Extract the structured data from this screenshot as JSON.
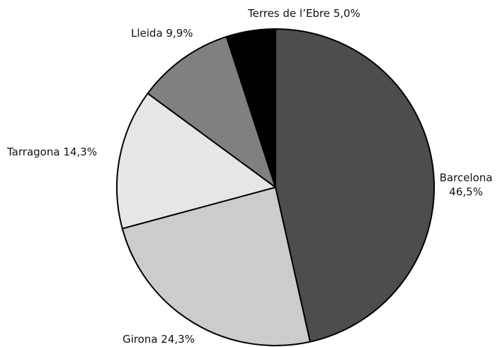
{
  "chart_data": {
    "type": "pie",
    "categories": [
      "Barcelona",
      "Girona",
      "Tarragona",
      "Lleida",
      "Terres de l’Ebre"
    ],
    "values": [
      46.5,
      24.3,
      14.3,
      9.9,
      5.0
    ],
    "value_labels": [
      "46,5%",
      "24,3%",
      "14,3%",
      "9,9%",
      "5,0%"
    ],
    "colors": [
      "#4d4d4d",
      "#cccccc",
      "#e6e6e6",
      "#808080",
      "#000000"
    ]
  }
}
